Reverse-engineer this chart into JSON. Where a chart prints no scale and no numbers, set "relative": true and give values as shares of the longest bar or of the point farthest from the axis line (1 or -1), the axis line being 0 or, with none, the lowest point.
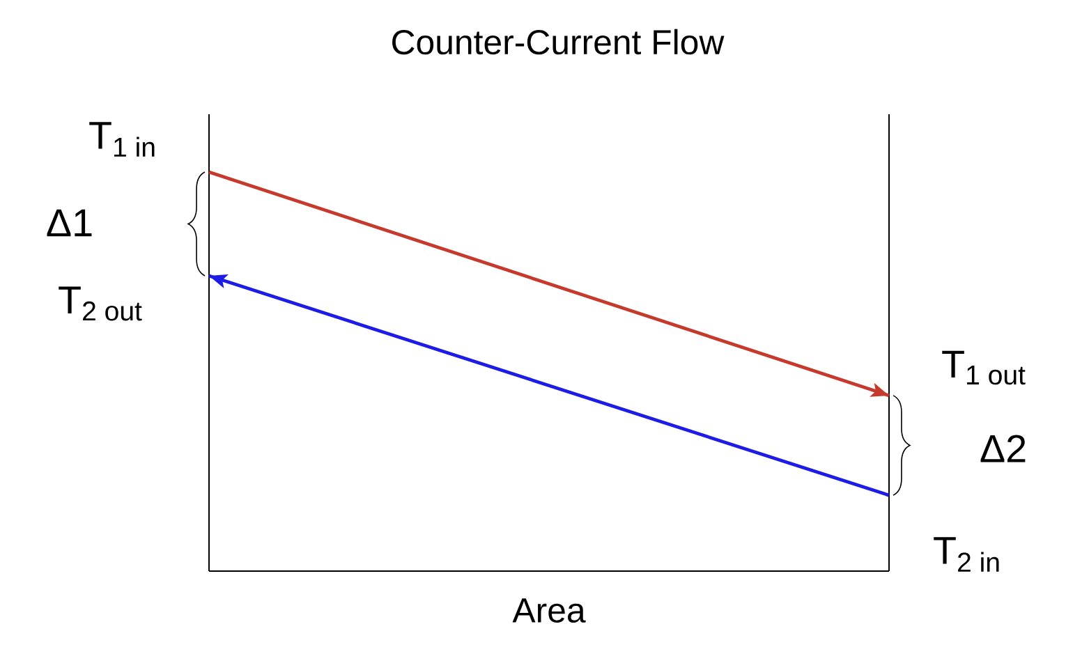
{
  "chart_data": {
    "type": "line",
    "title": "Counter-Current Flow",
    "xlabel": "Area",
    "relative": true,
    "categories": [
      null,
      null
    ],
    "series": [
      {
        "color": "#c53a2c",
        "values": [
          1,
          0.44
        ]
      },
      {
        "color": "#1c1ce6",
        "values": [
          0.74,
          0.19
        ]
      }
    ],
    "annotations": [
      "T$_{1 in}$",
      "Δ1",
      "T$_{2 out}$",
      "T$_{1 out}$",
      "Δ2",
      "T$_{2 in}$"
    ]
  }
}
